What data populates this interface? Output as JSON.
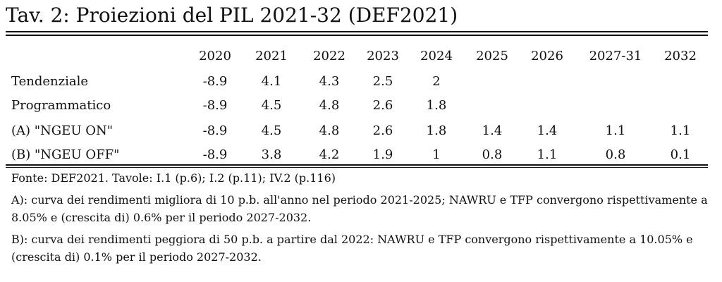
{
  "title": "Tav. 2: Proiezioni del PIL 2021-32 (DEF2021)",
  "table": {
    "columns": [
      "2020",
      "2021",
      "2022",
      "2023",
      "2024",
      "2025",
      "2026",
      "2027-31",
      "2032"
    ],
    "rows": [
      {
        "label": "Tendenziale",
        "values": [
          "-8.9",
          "4.1",
          "4.3",
          "2.5",
          "2",
          "",
          "",
          "",
          ""
        ]
      },
      {
        "label": "Programmatico",
        "values": [
          "-8.9",
          "4.5",
          "4.8",
          "2.6",
          "1.8",
          "",
          "",
          "",
          ""
        ]
      },
      {
        "label": "(A) \"NGEU ON\"",
        "values": [
          "-8.9",
          "4.5",
          "4.8",
          "2.6",
          "1.8",
          "1.4",
          "1.4",
          "1.1",
          "1.1"
        ]
      },
      {
        "label": "(B) \"NGEU OFF\"",
        "values": [
          "-8.9",
          "3.8",
          "4.2",
          "1.9",
          "1",
          "0.8",
          "1.1",
          "0.8",
          "0.1"
        ]
      }
    ]
  },
  "notes": {
    "source": "Fonte: DEF2021. Tavole: I.1 (p.6); I.2 (p.11); IV.2 (p.116)",
    "note_a": "A): curva dei rendimenti migliora di 10 p.b. all'anno nel periodo 2021-2025; NAWRU e TFP convergono rispettivamente a 8.05% e (crescita di) 0.6% per il periodo 2027-2032.",
    "note_b": "B): curva dei rendimenti peggiora di 50 p.b. a partire dal 2022: NAWRU e TFP convergono rispettivamente a 10.05% e (crescita di) 0.1% per il periodo 2027-2032."
  }
}
